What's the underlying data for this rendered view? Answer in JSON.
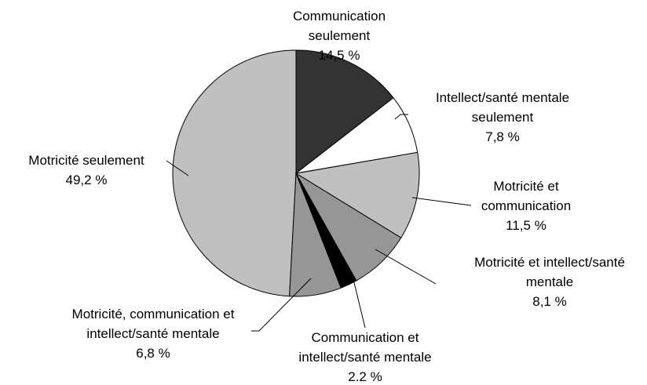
{
  "chart_data": {
    "type": "pie",
    "categories": [
      "Communication seulement",
      "Intellect/santé mentale seulement",
      "Motricité et communication",
      "Motricité et intellect/santé mentale",
      "Communication et intellect/santé mentale",
      "Motricité, communication et intellect/santé mentale",
      "Motricité seulement"
    ],
    "values": [
      14.5,
      7.8,
      11.5,
      8.1,
      2.2,
      6.8,
      49.2
    ],
    "value_labels": [
      "14,5 %",
      "7,8 %",
      "11,5 %",
      "8,1 %",
      "2.2 %",
      "6,8 %",
      "49,2 %"
    ],
    "colors": [
      "#333333",
      "#ffffff",
      "#c0c0c0",
      "#969696",
      "#000000",
      "#969696",
      "#c0c0c0"
    ]
  }
}
